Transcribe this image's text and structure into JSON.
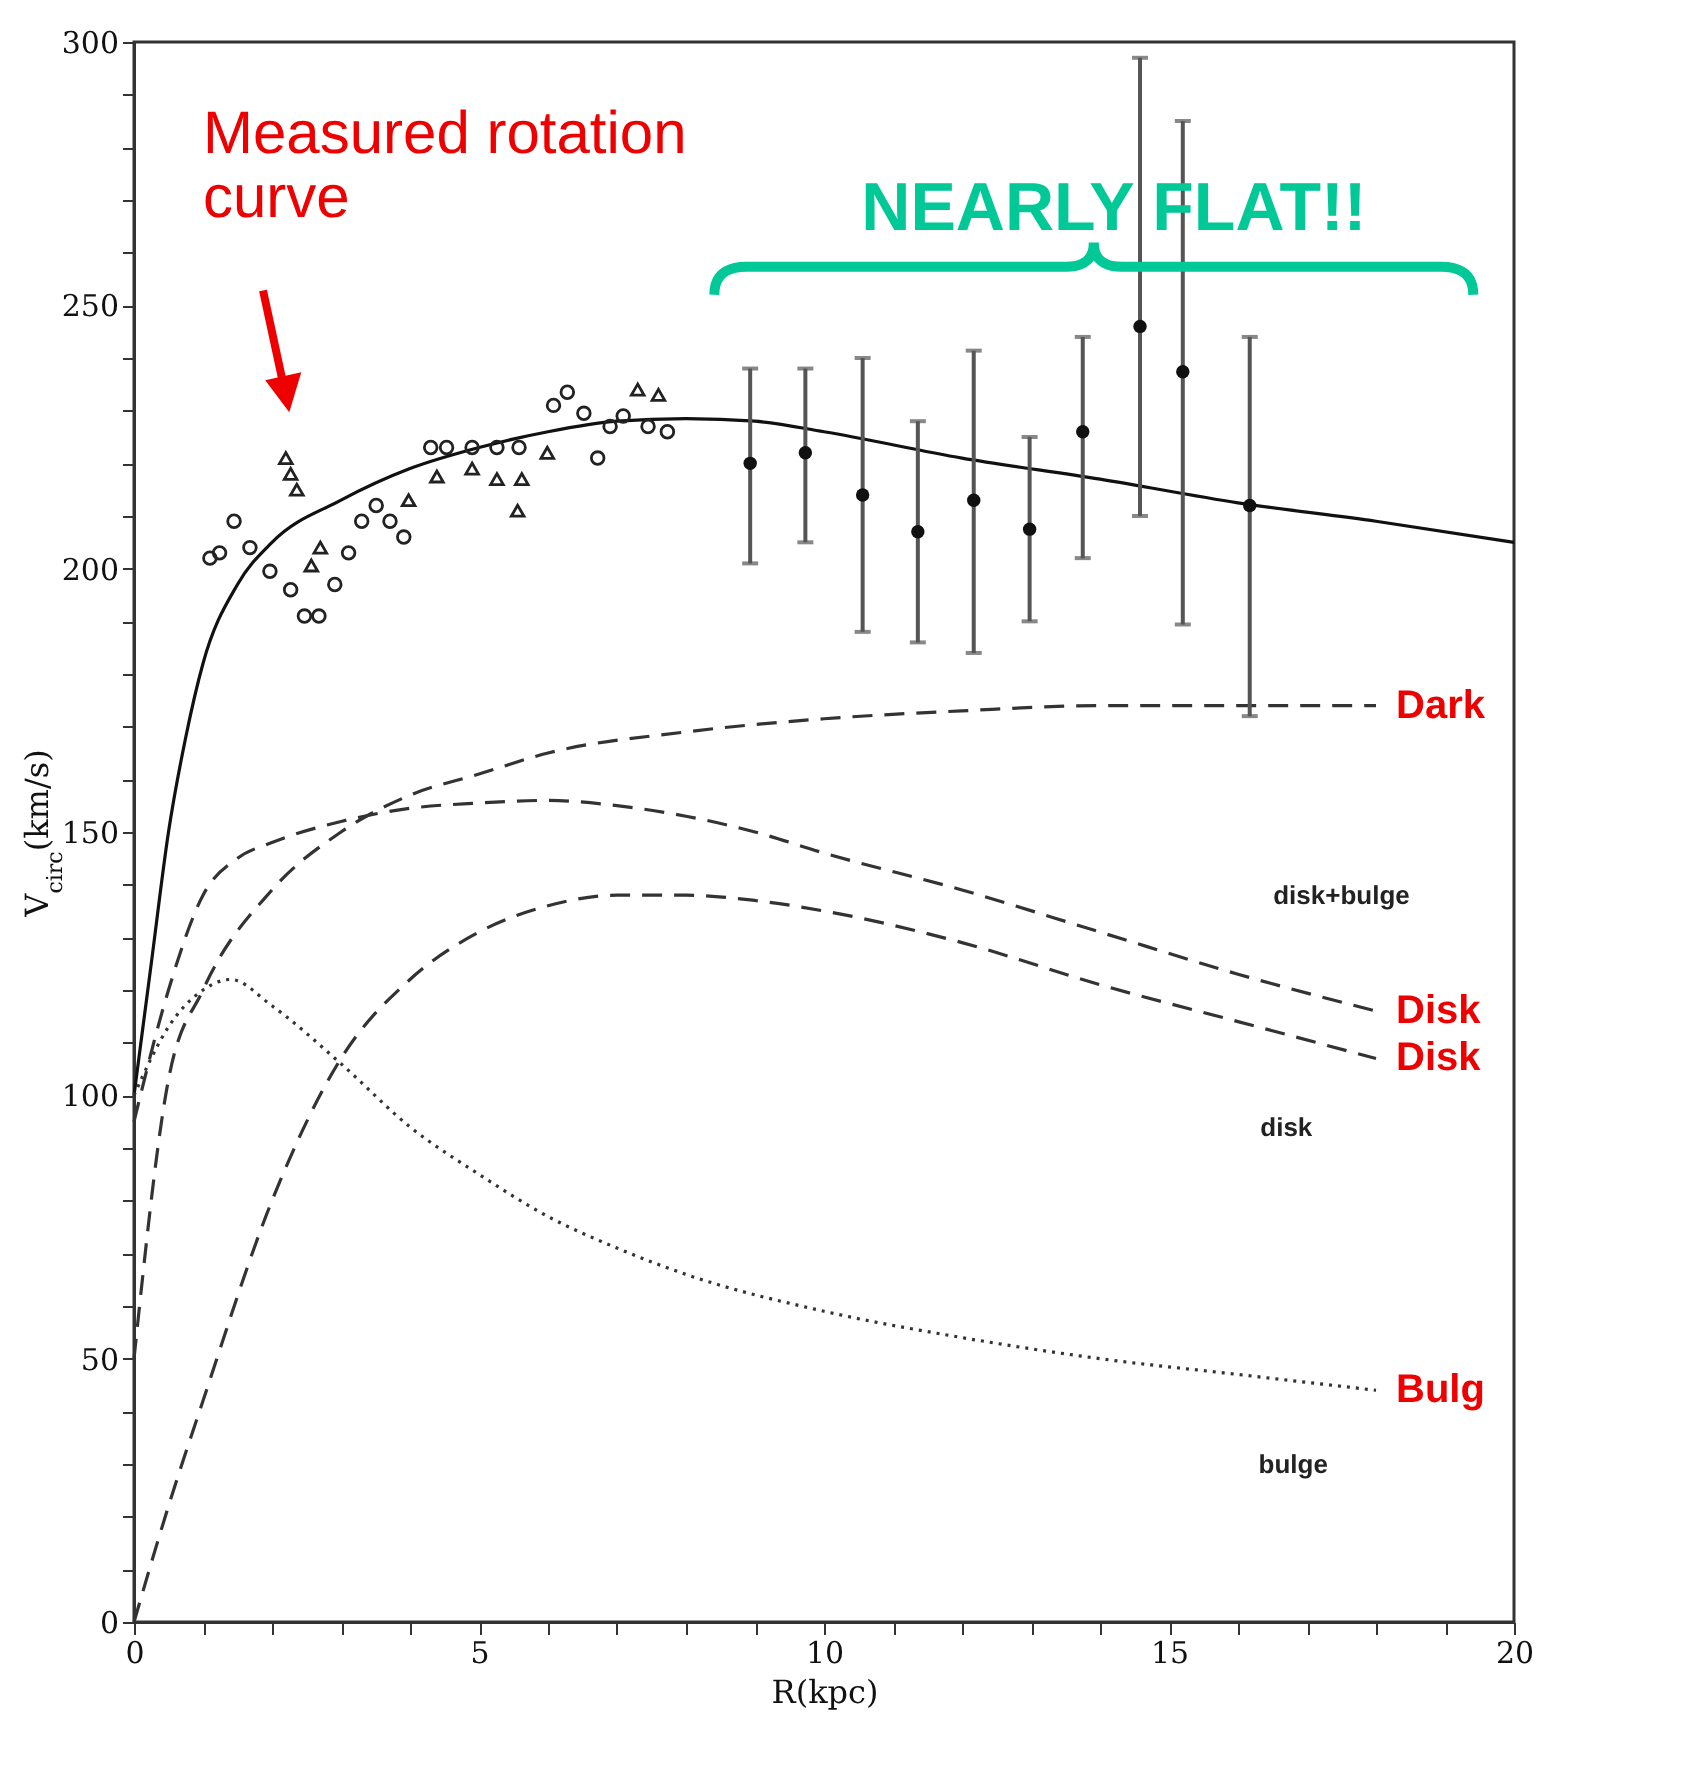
{
  "chart_data": {
    "type": "line",
    "xlabel": "R(kpc)",
    "ylabel": "V$_{circ}$(km/s)",
    "xlim": [
      0,
      20
    ],
    "ylim": [
      0,
      300
    ],
    "xticks": [
      0,
      {
        "value": 1,
        "label": null
      },
      {
        "value": 2,
        "label": null
      },
      {
        "value": 3,
        "label": null
      },
      {
        "value": 4,
        "label": null
      },
      5,
      {
        "value": 6,
        "label": null
      },
      {
        "value": 7,
        "label": null
      },
      {
        "value": 8,
        "label": null
      },
      {
        "value": 9,
        "label": null
      },
      10,
      {
        "value": 11,
        "label": null
      },
      {
        "value": 12,
        "label": null
      },
      {
        "value": 13,
        "label": null
      },
      {
        "value": 14,
        "label": null
      },
      15,
      {
        "value": 16,
        "label": null
      },
      {
        "value": 17,
        "label": null
      },
      {
        "value": 18,
        "label": null
      },
      {
        "value": 19,
        "label": null
      },
      20
    ],
    "yticks": [
      0,
      {
        "value": 10,
        "label": null
      },
      {
        "value": 20,
        "label": null
      },
      {
        "value": 30,
        "label": null
      },
      {
        "value": 40,
        "label": null
      },
      50,
      {
        "value": 60,
        "label": null
      },
      {
        "value": 70,
        "label": null
      },
      {
        "value": 80,
        "label": null
      },
      {
        "value": 90,
        "label": null
      },
      100,
      {
        "value": 110,
        "label": null
      },
      {
        "value": 120,
        "label": null
      },
      {
        "value": 130,
        "label": null
      },
      {
        "value": 140,
        "label": null
      },
      150,
      {
        "value": 160,
        "label": null
      },
      {
        "value": 170,
        "label": null
      },
      {
        "value": 180,
        "label": null
      },
      {
        "value": 190,
        "label": null
      },
      200,
      {
        "value": 210,
        "label": null
      },
      {
        "value": 220,
        "label": null
      },
      {
        "value": 230,
        "label": null
      },
      {
        "value": 240,
        "label": null
      },
      250,
      {
        "value": 260,
        "label": null
      },
      {
        "value": 270,
        "label": null
      },
      {
        "value": 280,
        "label": null
      },
      {
        "value": 290,
        "label": null
      },
      300
    ],
    "series": [
      {
        "color": "#111111",
        "line_style": "solid",
        "x": [
          0,
          0.25,
          0.5,
          0.75,
          1,
          1.5,
          2,
          3,
          4,
          5,
          6,
          7,
          8,
          9,
          10,
          12,
          14,
          16,
          18,
          20
        ],
        "values": [
          100,
          125,
          150,
          168,
          182,
          197,
          205,
          213,
          219,
          223,
          226,
          228,
          228.5,
          228,
          226,
          221,
          217,
          212.5,
          209,
          205
        ]
      },
      {
        "name": "Dark",
        "color": "#333333",
        "line_style": "dashed",
        "x": [
          0,
          0.5,
          1,
          2,
          3,
          4,
          5,
          6,
          8,
          10,
          12,
          14,
          16,
          18
        ],
        "values": [
          50,
          103,
          120,
          139,
          150,
          157,
          161,
          165,
          169,
          171.5,
          173,
          174,
          174,
          174
        ]
      },
      {
        "name": "Disk",
        "color": "#333333",
        "line_style": "dashed",
        "x": [
          0,
          0.5,
          1,
          1.5,
          2,
          3,
          4,
          5,
          6,
          7,
          8,
          9,
          10,
          12,
          14,
          16,
          18
        ],
        "values": [
          95,
          120,
          138,
          145,
          148,
          152,
          154.5,
          155.5,
          156,
          155,
          153,
          150,
          146,
          139,
          131,
          123,
          116
        ]
      },
      {
        "name": "Disk",
        "color": "#333333",
        "line_style": "dashed",
        "x": [
          0,
          0.5,
          1,
          2,
          3,
          4,
          5,
          6,
          7,
          8,
          9,
          10,
          12,
          14,
          16,
          18
        ],
        "values": [
          0,
          22,
          42,
          80,
          107,
          122,
          131,
          136,
          138,
          138,
          137,
          135,
          129,
          121,
          114,
          107
        ]
      },
      {
        "name": "Bulg",
        "color": "#333333",
        "line_style": "dotted",
        "x": [
          0,
          0.5,
          1,
          1.4,
          2,
          3,
          4,
          5,
          6,
          7,
          8,
          10,
          12,
          14,
          16,
          18
        ],
        "values": [
          100,
          113,
          120,
          122,
          117,
          106,
          94,
          85,
          77,
          71,
          66,
          59,
          54,
          50,
          47,
          44
        ]
      },
      {
        "type": "scatter",
        "marker": "circle",
        "color": "#222222",
        "x": [
          1.1,
          1.24,
          1.45,
          1.68,
          1.97,
          2.27,
          2.47,
          2.68,
          2.91,
          3.11,
          3.3,
          3.51,
          3.71,
          3.91,
          4.3,
          4.53,
          4.9,
          5.26,
          5.58,
          6.08,
          6.28,
          6.52,
          6.72,
          6.9,
          7.09,
          7.45,
          7.73
        ],
        "values": [
          202,
          203,
          209,
          204,
          199.5,
          196,
          191,
          191,
          197,
          203,
          209,
          212,
          209,
          206,
          223,
          223,
          223,
          223,
          223,
          231,
          233.5,
          229.5,
          221,
          227,
          229,
          227,
          226
        ]
      },
      {
        "type": "scatter",
        "marker": "triangle",
        "color": "#222222",
        "x": [
          2.2,
          2.27,
          2.36,
          2.57,
          2.7,
          3.98,
          4.39,
          4.9,
          5.26,
          5.56,
          5.62,
          5.99,
          7.3,
          7.6
        ],
        "values": [
          221,
          218,
          215,
          200.6,
          204,
          213,
          217.5,
          219,
          217,
          211,
          217,
          222,
          234,
          233
        ]
      },
      {
        "type": "scatter",
        "marker": "circle",
        "color": "#111111",
        "x": [
          8.93,
          9.73,
          10.56,
          11.36,
          12.17,
          12.98,
          13.75,
          14.58,
          15.2,
          16.17
        ],
        "values": [
          220,
          222,
          214,
          207,
          213,
          207.5,
          226,
          246,
          237.4,
          212
        ],
        "errors": [
          [
            201,
            238
          ],
          [
            205,
            238
          ],
          [
            188,
            240
          ],
          [
            186,
            228
          ],
          [
            184,
            241.4
          ],
          [
            190,
            225
          ],
          [
            202,
            244
          ],
          [
            210,
            297
          ],
          [
            189.4,
            285
          ],
          [
            172,
            244
          ]
        ]
      }
    ],
    "annotations": [
      "Measured rotation\ncurve",
      "NEARLY FLAT!!",
      "disk+bulge",
      "disk",
      "bulge"
    ]
  }
}
